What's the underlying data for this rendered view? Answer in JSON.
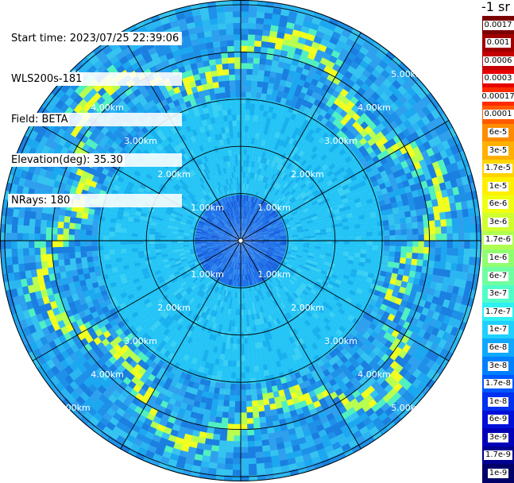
{
  "info": {
    "start_time": "Start time: 2023/07/25 22:39:06",
    "device": "WLS200s-181",
    "field": "Field: BETA",
    "elevation": "Elevation(deg): 35.30",
    "nrays": "NRays: 180"
  },
  "colorbar": {
    "unit_label": "-1 sr",
    "labels": [
      "0.0017",
      "0.001",
      "0.0006",
      "0.0003",
      "0.00017",
      "0.0001",
      "6e-5",
      "3e-5",
      "1.7e-5",
      "1e-5",
      "6e-6",
      "3e-6",
      "1.7e-6",
      "1e-6",
      "6e-7",
      "3e-7",
      "1.7e-7",
      "1e-7",
      "6e-8",
      "3e-8",
      "1.7e-8",
      "1e-8",
      "6e-9",
      "3e-9",
      "1.7e-9",
      "1e-9"
    ],
    "colors": [
      "#7a0000",
      "#a00000",
      "#c40000",
      "#e60000",
      "#ff2a00",
      "#ff5a00",
      "#ff8c00",
      "#ffb000",
      "#ffd400",
      "#fff000",
      "#f0ff10",
      "#d0ff30",
      "#b0ff50",
      "#90ff70",
      "#70ffa0",
      "#50ffc8",
      "#30f0f0",
      "#20d0ff",
      "#10a8ff",
      "#0080ff",
      "#0058ff",
      "#0030f0",
      "#0010d8",
      "#0000b8",
      "#000090",
      "#000068"
    ]
  },
  "chart_data": {
    "type": "heatmap",
    "projection": "polar (PPI scan)",
    "field": "BETA",
    "range_ring_labels": [
      "1.00km",
      "2.00km",
      "3.00km",
      "4.00km",
      "5.00km"
    ],
    "range_rings_km": [
      1,
      2,
      3,
      4,
      5
    ],
    "max_range_km": 5.1,
    "nrays": 180,
    "spoke_count": 12,
    "color_scale": "log",
    "value_range": [
      1e-09,
      0.0017
    ],
    "dominant_value": "1e-7 to 1.7e-7 (cyan)",
    "features": [
      {
        "description": "yellow ring of high backscatter",
        "value": "1e-5 to 6e-6",
        "range_km": [
          3.0,
          4.8
        ]
      },
      {
        "description": "darker blue core near origin",
        "value": "1e-8 to 3e-8",
        "range_km": [
          0,
          0.9
        ]
      }
    ]
  }
}
